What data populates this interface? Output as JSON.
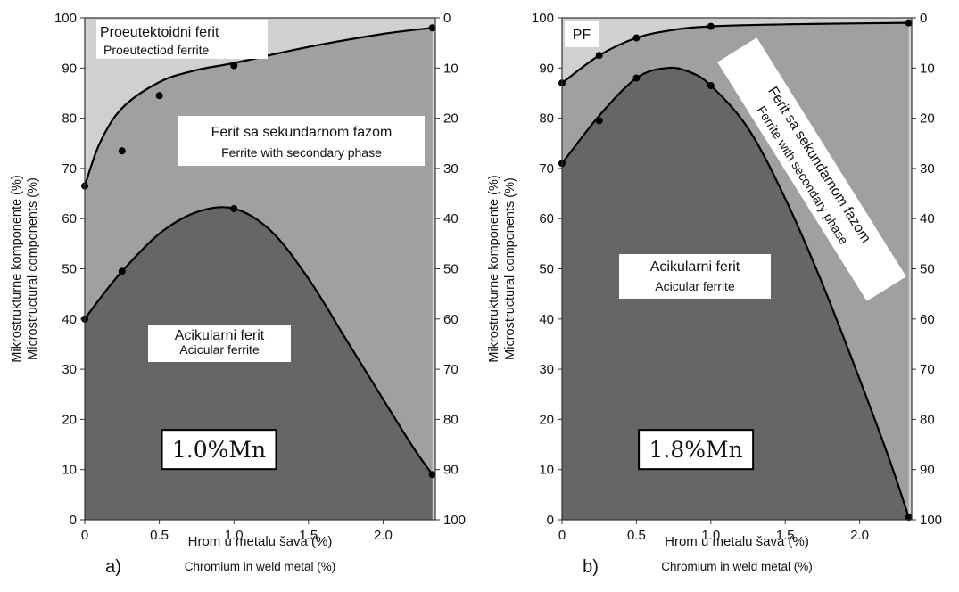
{
  "chart_data": [
    {
      "type": "area",
      "panel_label": "a)",
      "box_label": "1.0%Mn",
      "xlabel": "Hrom u metalu šava (%)",
      "xlabel_en": "Chromium in weld metal (%)",
      "ylabel": "Mikrostrukturne komponente (%)",
      "ylabel_en": "Microstructural components (%)",
      "xlim": [
        0,
        2.35
      ],
      "ylim": [
        0,
        100
      ],
      "x_ticks": [
        "0",
        "0.5",
        "1.0",
        "1.5",
        "2.0"
      ],
      "x_tick_values": [
        0,
        0.5,
        1.0,
        1.5,
        2.0
      ],
      "y_ticks": [
        "0",
        "10",
        "20",
        "30",
        "40",
        "50",
        "60",
        "70",
        "80",
        "90",
        "100"
      ],
      "y_right_ticks": [
        "100",
        "90",
        "80",
        "70",
        "60",
        "50",
        "40",
        "30",
        "20",
        "10",
        "0"
      ],
      "regions": [
        {
          "label": "Proeutektoidni ferit",
          "label_en": "Proeutectiod ferrite",
          "color": "#d0d0d0"
        },
        {
          "label": "Ferit sa sekundarnom fazom",
          "label_en": "Ferrite with secondary phase",
          "color": "#a0a0a0"
        },
        {
          "label": "Acikularni ferit",
          "label_en": "Acicular ferrite",
          "color": "#666666"
        }
      ],
      "upper_curve": {
        "points": [
          [
            0,
            66.5
          ],
          [
            0.25,
            73.5
          ],
          [
            0.5,
            84.5
          ],
          [
            1.0,
            90.5
          ],
          [
            2.33,
            98
          ]
        ],
        "fit": [
          [
            0,
            66.5
          ],
          [
            0.1,
            75
          ],
          [
            0.25,
            82
          ],
          [
            0.5,
            87.2
          ],
          [
            0.75,
            89.6
          ],
          [
            1.0,
            91
          ],
          [
            1.5,
            94.2
          ],
          [
            2.0,
            96.8
          ],
          [
            2.33,
            98
          ]
        ]
      },
      "lower_curve": {
        "points": [
          [
            0,
            40
          ],
          [
            0.25,
            49.5
          ],
          [
            1.0,
            62
          ],
          [
            2.33,
            9
          ]
        ],
        "fit": [
          [
            0,
            40
          ],
          [
            0.1,
            44
          ],
          [
            0.25,
            49.5
          ],
          [
            0.5,
            57
          ],
          [
            0.75,
            61.3
          ],
          [
            1.0,
            62
          ],
          [
            1.25,
            57.5
          ],
          [
            1.5,
            48
          ],
          [
            1.75,
            36
          ],
          [
            2.0,
            24
          ],
          [
            2.2,
            14.5
          ],
          [
            2.33,
            9
          ]
        ]
      }
    },
    {
      "type": "area",
      "panel_label": "b)",
      "box_label": "1.8%Mn",
      "xlabel": "Hrom u metalu šava (%)",
      "xlabel_en": "Chromium in weld metal (%)",
      "ylabel": "Mikrostrukturne komponente (%)",
      "ylabel_en": "Microstructural components (%)",
      "xlim": [
        0,
        2.35
      ],
      "ylim": [
        0,
        100
      ],
      "x_ticks": [
        "0",
        "0.5",
        "1.0",
        "1.5",
        "2.0"
      ],
      "x_tick_values": [
        0,
        0.5,
        1.0,
        1.5,
        2.0
      ],
      "y_ticks": [
        "0",
        "10",
        "20",
        "30",
        "40",
        "50",
        "60",
        "70",
        "80",
        "90",
        "100"
      ],
      "y_right_ticks": [
        "100",
        "90",
        "80",
        "70",
        "60",
        "50",
        "40",
        "30",
        "20",
        "10",
        "0"
      ],
      "regions": [
        {
          "label": "PF",
          "label_en": "",
          "color": "#d0d0d0"
        },
        {
          "label": "Ferit sa sekundarnom fazom",
          "label_en": "Ferrite with secondary phase",
          "color": "#a0a0a0"
        },
        {
          "label": "Acikularni ferit",
          "label_en": "Acicular ferrite",
          "color": "#666666"
        }
      ],
      "upper_curve": {
        "points": [
          [
            0,
            87
          ],
          [
            0.25,
            92.5
          ],
          [
            0.5,
            96
          ],
          [
            1.0,
            98.3
          ],
          [
            2.33,
            99
          ]
        ],
        "fit": [
          [
            0,
            87
          ],
          [
            0.25,
            92.5
          ],
          [
            0.5,
            96
          ],
          [
            0.75,
            97.6
          ],
          [
            1.0,
            98.3
          ],
          [
            1.5,
            98.7
          ],
          [
            2.0,
            98.9
          ],
          [
            2.33,
            99
          ]
        ]
      },
      "lower_curve": {
        "points": [
          [
            0,
            71
          ],
          [
            0.25,
            79.5
          ],
          [
            0.5,
            88
          ],
          [
            1.0,
            86.5
          ],
          [
            2.33,
            0.5
          ]
        ],
        "fit": [
          [
            0,
            71
          ],
          [
            0.25,
            80.5
          ],
          [
            0.5,
            88
          ],
          [
            0.7,
            90
          ],
          [
            0.85,
            89.3
          ],
          [
            1.0,
            86.5
          ],
          [
            1.25,
            78
          ],
          [
            1.5,
            64
          ],
          [
            1.75,
            47
          ],
          [
            2.0,
            28
          ],
          [
            2.2,
            12
          ],
          [
            2.33,
            0.5
          ]
        ]
      }
    }
  ]
}
